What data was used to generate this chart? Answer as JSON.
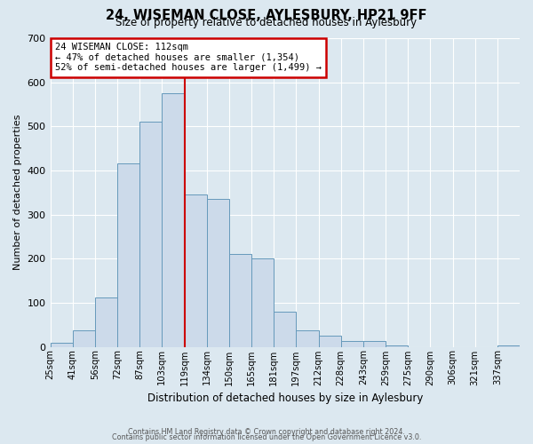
{
  "title": "24, WISEMAN CLOSE, AYLESBURY, HP21 9FF",
  "subtitle": "Size of property relative to detached houses in Aylesbury",
  "xlabel": "Distribution of detached houses by size in Aylesbury",
  "ylabel": "Number of detached properties",
  "bar_color": "#ccdaea",
  "bar_edge_color": "#6699bb",
  "background_color": "#dce8f0",
  "grid_color": "#ffffff",
  "bin_labels": [
    "25sqm",
    "41sqm",
    "56sqm",
    "72sqm",
    "87sqm",
    "103sqm",
    "119sqm",
    "134sqm",
    "150sqm",
    "165sqm",
    "181sqm",
    "197sqm",
    "212sqm",
    "228sqm",
    "243sqm",
    "259sqm",
    "275sqm",
    "290sqm",
    "306sqm",
    "321sqm",
    "337sqm"
  ],
  "bar_heights": [
    10,
    38,
    112,
    415,
    510,
    575,
    345,
    335,
    210,
    200,
    80,
    37,
    25,
    13,
    13,
    3,
    0,
    0,
    0,
    0,
    3
  ],
  "ylim": [
    0,
    700
  ],
  "yticks": [
    0,
    100,
    200,
    300,
    400,
    500,
    600,
    700
  ],
  "annotation_title": "24 WISEMAN CLOSE: 112sqm",
  "annotation_line1": "← 47% of detached houses are smaller (1,354)",
  "annotation_line2": "52% of semi-detached houses are larger (1,499) →",
  "annotation_box_color": "white",
  "annotation_box_edge_color": "#cc0000",
  "vline_color": "#cc0000",
  "footer_line1": "Contains HM Land Registry data © Crown copyright and database right 2024.",
  "footer_line2": "Contains public sector information licensed under the Open Government Licence v3.0.",
  "num_bins": 21,
  "bin_width": 1
}
